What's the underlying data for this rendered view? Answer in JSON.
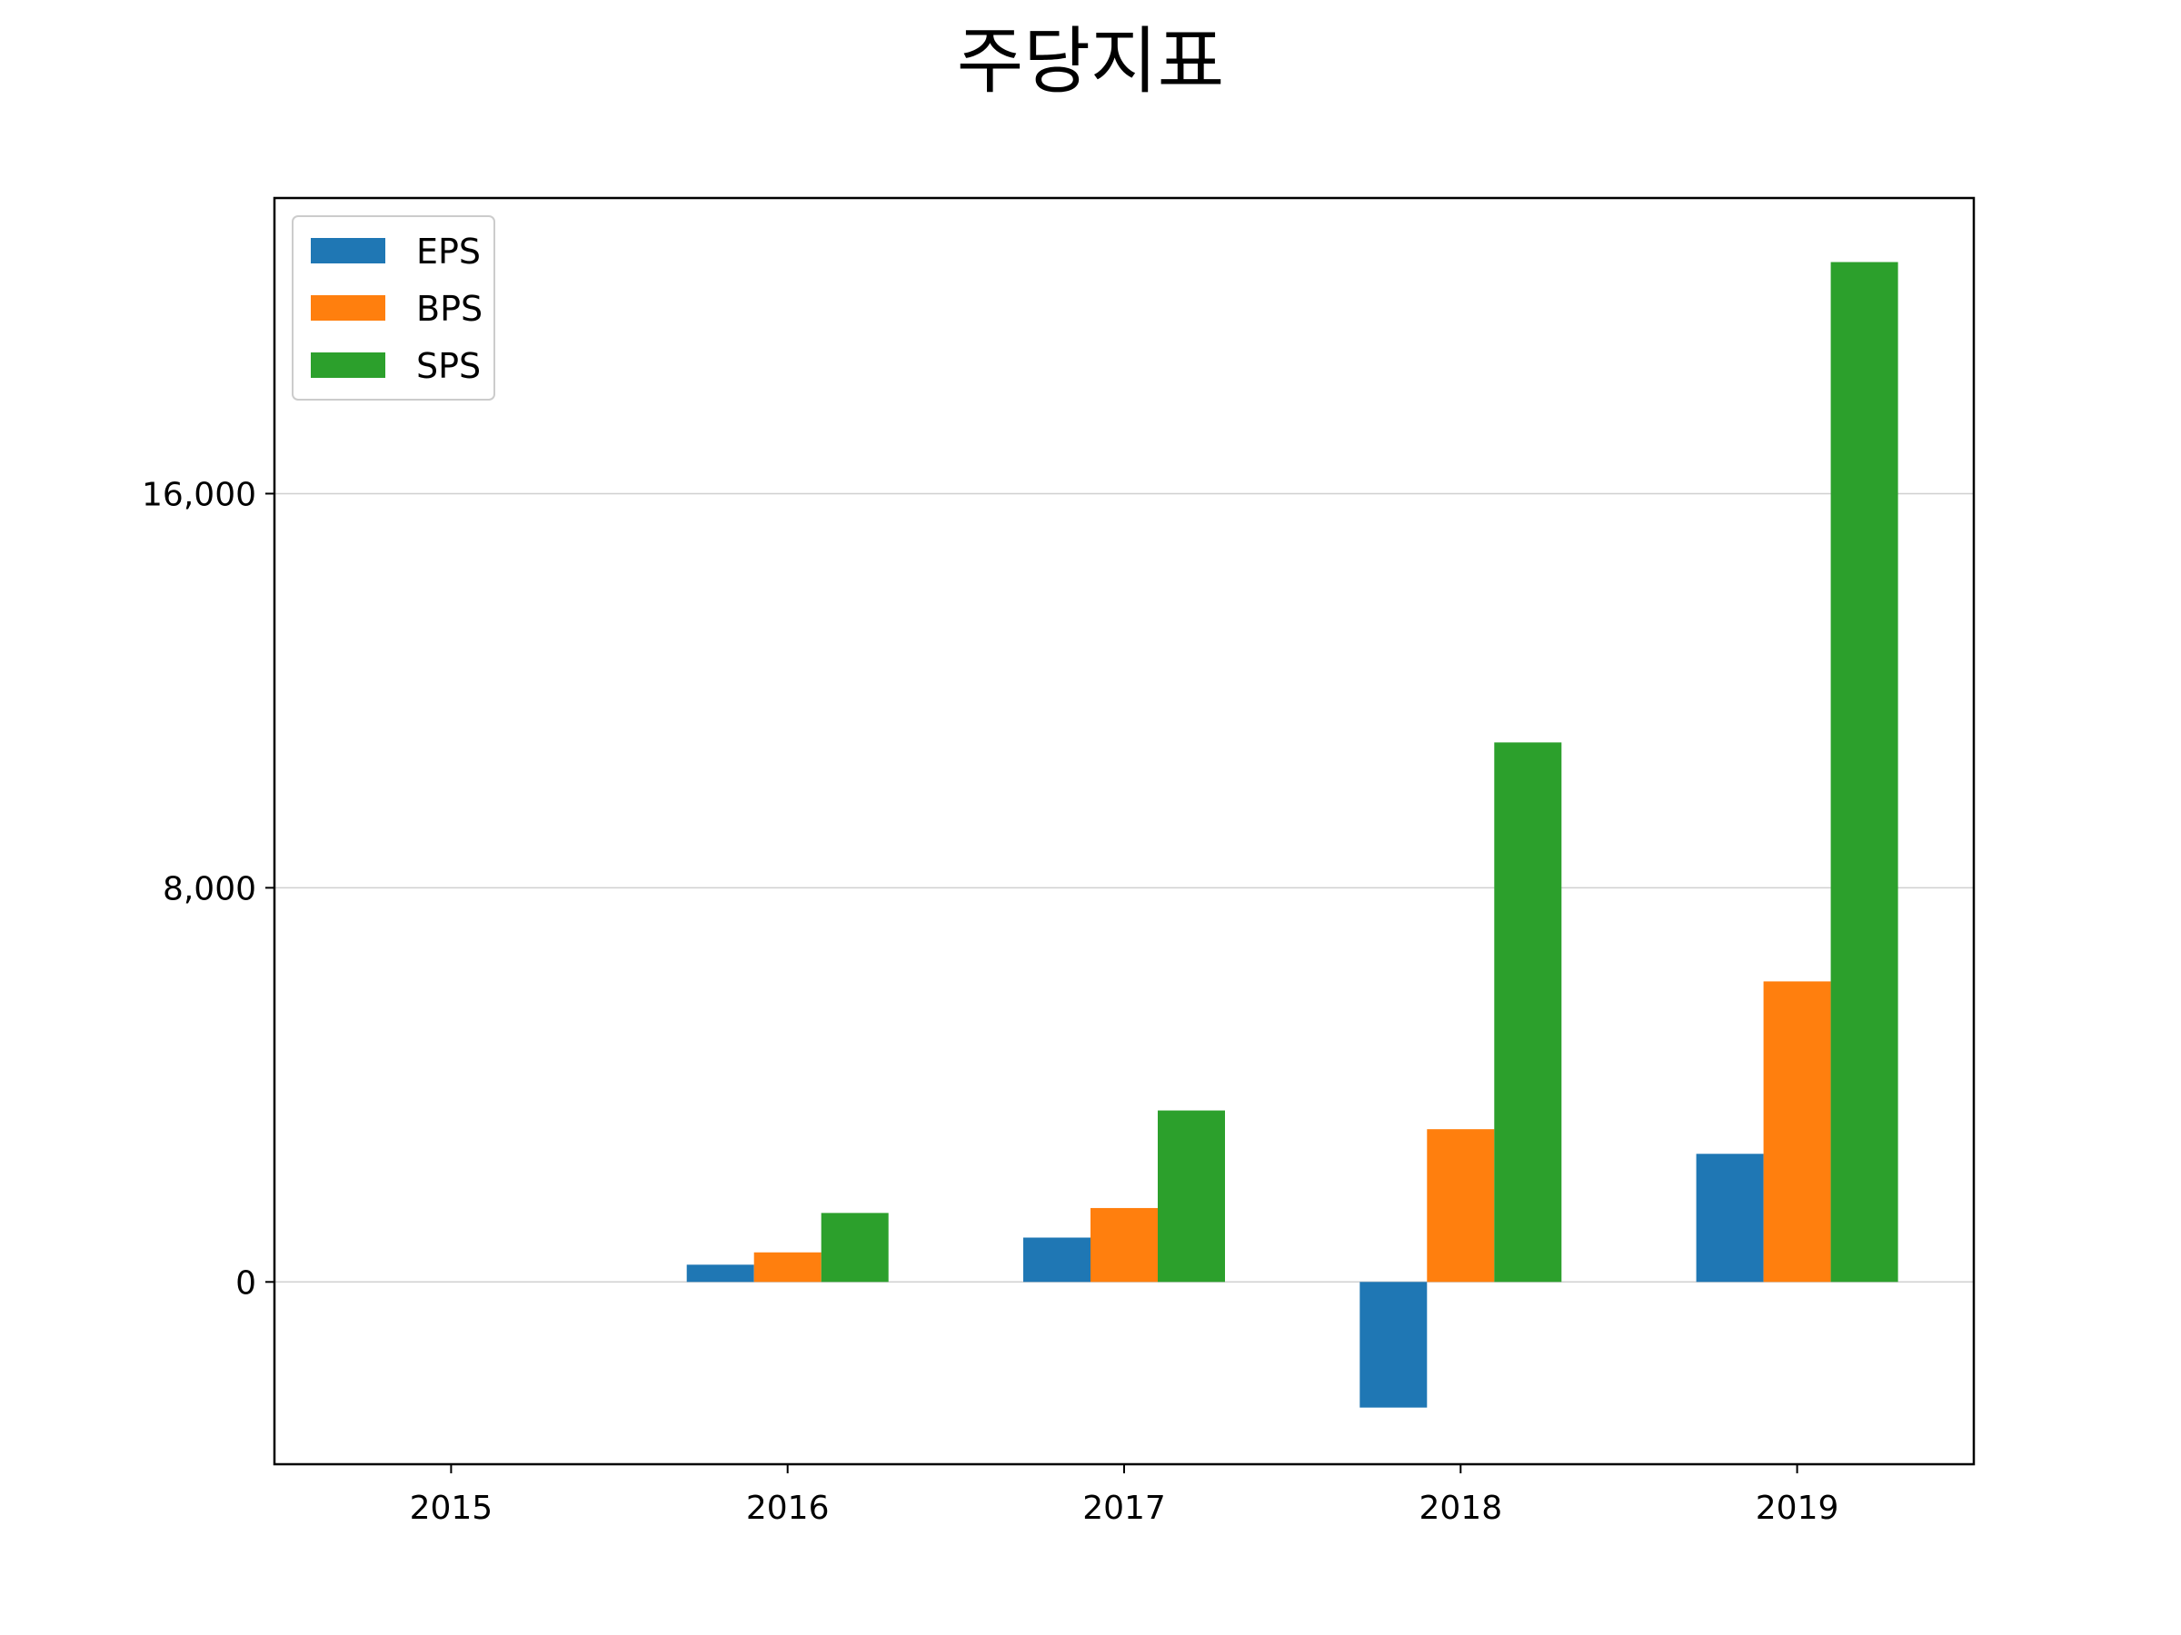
{
  "chart_data": {
    "type": "bar",
    "title": "주당지표",
    "xlabel": "",
    "ylabel": "",
    "categories": [
      "2015",
      "2016",
      "2017",
      "2018",
      "2019"
    ],
    "series": [
      {
        "name": "EPS",
        "values": [
          0,
          350,
          900,
          -2550,
          2600
        ],
        "color": "#1f77b4"
      },
      {
        "name": "BPS",
        "values": [
          0,
          600,
          1500,
          3100,
          6100
        ],
        "color": "#ff7f0e"
      },
      {
        "name": "SPS",
        "values": [
          0,
          1400,
          3480,
          10950,
          20700
        ],
        "color": "#2ca02c"
      }
    ],
    "ylim": [
      -3700,
      22000
    ],
    "yticks": [
      0,
      8000,
      16000
    ],
    "ytick_labels": [
      "0",
      "8,000",
      "16,000"
    ],
    "grid": "horizontal",
    "legend_position": "upper left"
  }
}
